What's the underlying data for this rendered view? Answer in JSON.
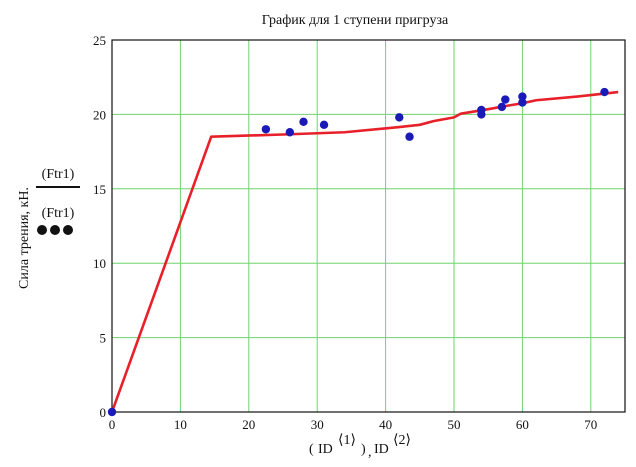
{
  "chart_data": {
    "type": "line",
    "title": "График для 1 ступени пригруза",
    "xlabel_parts": {
      "open": "(",
      "base1": "ID",
      "sup1": "⟨1⟩",
      "close": ")",
      "sep": ",",
      "base2": "ID",
      "sup2": "⟨2⟩"
    },
    "ylabel": "Сила трения,  кН.",
    "legend": [
      {
        "label": "(Ftr1)",
        "marker": "line",
        "color": "#111111"
      },
      {
        "label": "(Ftr1)",
        "marker": "dots",
        "color": "#111111"
      }
    ],
    "xlim": [
      0,
      75
    ],
    "ylim": [
      0,
      25
    ],
    "x_ticks": [
      0,
      10,
      20,
      30,
      40,
      50,
      60,
      70
    ],
    "y_ticks": [
      0,
      5,
      10,
      15,
      20,
      25
    ],
    "grid": true,
    "grid_color": "#6fd36f",
    "series": [
      {
        "type": "line",
        "color": "#e8202a",
        "x": [
          0,
          14.5,
          25,
          34,
          42,
          45,
          47,
          50,
          51,
          55,
          58,
          60,
          62,
          68,
          72,
          74
        ],
        "y": [
          0,
          18.5,
          18.65,
          18.8,
          19.15,
          19.3,
          19.55,
          19.8,
          20.05,
          20.35,
          20.6,
          20.75,
          20.95,
          21.2,
          21.4,
          21.5
        ]
      },
      {
        "type": "scatter",
        "color": "#1a1ab8",
        "x": [
          0,
          22.5,
          26,
          28,
          31,
          42,
          43.5,
          54,
          54,
          57,
          57.5,
          60,
          60,
          72
        ],
        "y": [
          0,
          19.0,
          18.8,
          19.5,
          19.3,
          19.8,
          18.5,
          20.0,
          20.3,
          20.5,
          21.0,
          20.8,
          21.2,
          21.5
        ]
      }
    ]
  }
}
